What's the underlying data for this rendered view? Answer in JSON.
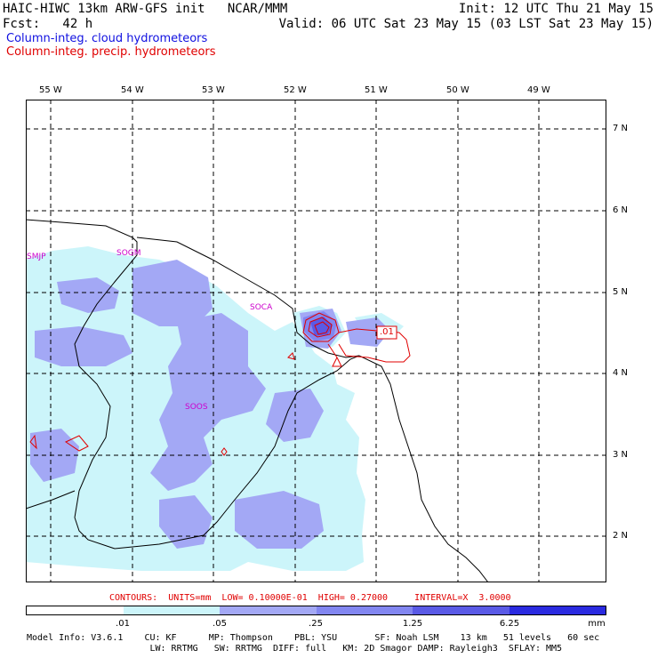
{
  "header": {
    "left_line1": "HAIC-HIWC 13km ARW-GFS init   NCAR/MMM",
    "left_line2": "Fcst:   42 h",
    "right_line1": "Init: 12 UTC Thu 21 May 15",
    "right_line2": "Valid: 06 UTC Sat 23 May 15 (03 LST Sat 23 May 15)",
    "legend_cloud": "Column-integ. cloud hydrometeors",
    "legend_precip": "Column-integ. precip. hydrometeors"
  },
  "map": {
    "lon_labels": [
      "55 W",
      "54 W",
      "53 W",
      "52 W",
      "51 W",
      "50 W",
      "49 W"
    ],
    "lat_labels": [
      "7 N",
      "6 N",
      "5 N",
      "4 N",
      "3 N",
      "2 N"
    ],
    "stations": [
      "SMJP",
      "SOGM",
      "SOCA",
      "SOOS"
    ],
    "contour_label": ".01",
    "colors": {
      "shade1": "#ccf5fa",
      "shade2": "#a3a8f5",
      "shade3": "#8286f0",
      "shade4": "#5a5ae6",
      "shade5": "#2a2ae0",
      "precip_contour": "#e00000",
      "coast": "#000000",
      "station_text": "#cc00cc"
    }
  },
  "contours_info": "CONTOURS:  UNITS=mm  LOW= 0.10000E-01  HIGH= 0.27000     INTERVAL=X  3.0000",
  "scale": {
    "labels": [
      ".01",
      ".05",
      ".25",
      "1.25",
      "6.25",
      "mm"
    ],
    "colors": [
      "#ffffff",
      "#ccf5fa",
      "#a3a8f5",
      "#8286f0",
      "#5a5ae6",
      "#2a2ae0"
    ]
  },
  "footer": {
    "line1": "Model Info: V3.6.1    CU: KF      MP: Thompson    PBL: YSU       SF: Noah LSM    13 km   51 levels   60 sec",
    "line2": "                       LW: RRTMG   SW: RRTMG  DIFF: full   KM: 2D Smagor DAMP: Rayleigh3  SFLAY: MM5"
  }
}
